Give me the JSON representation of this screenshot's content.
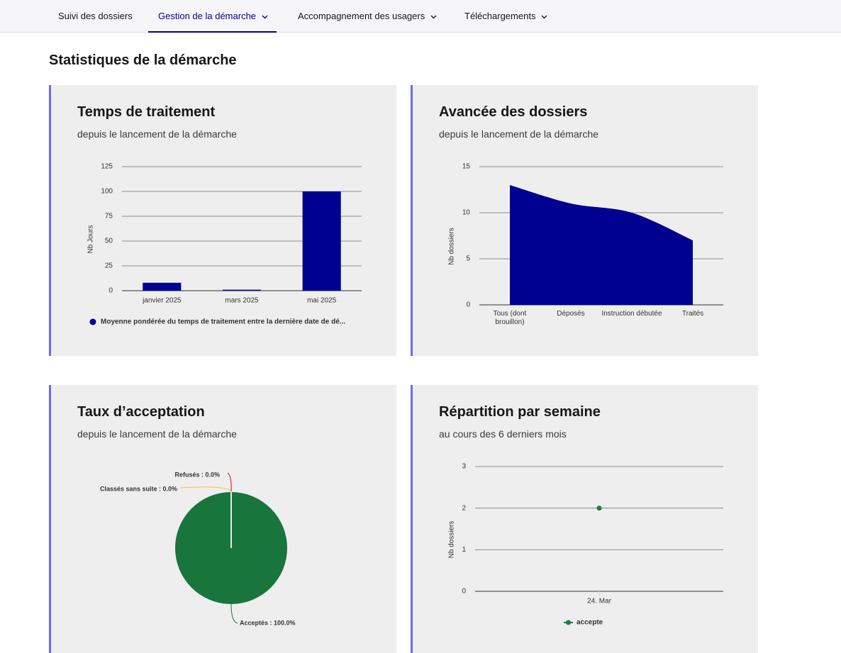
{
  "nav": {
    "items": [
      {
        "label": "Suivi des dossiers",
        "menu": false
      },
      {
        "label": "Gestion de la démarche",
        "menu": true
      },
      {
        "label": "Accompagnement des usagers",
        "menu": true
      },
      {
        "label": "Téléchargements",
        "menu": true
      }
    ],
    "active": 1
  },
  "page_title": "Statistiques de la démarche",
  "chart_data": [
    {
      "type": "bar",
      "title": "Temps de traitement",
      "subtitle": "depuis le lancement de la démarche",
      "ylabel": "Nb Jours",
      "categories": [
        "janvier 2025",
        "mars 2025",
        "mai 2025"
      ],
      "series": [
        {
          "name": "Moyenne pondérée du temps de traitement entre la dernière date de dé...",
          "color": "#000091",
          "values": [
            8,
            1,
            100
          ]
        }
      ],
      "ylim": [
        0,
        125
      ],
      "yticks": [
        0,
        25,
        50,
        75,
        100,
        125
      ],
      "grid": true
    },
    {
      "type": "area",
      "title": "Avancée des dossiers",
      "subtitle": "depuis le lancement de la démarche",
      "ylabel": "Nb dossiers",
      "categories": [
        "Tous (dont brouillon)",
        "Déposés",
        "Instruction débutée",
        "Traités"
      ],
      "series": [
        {
          "color": "#000091",
          "values": [
            13,
            11,
            10,
            7
          ]
        }
      ],
      "ylim": [
        0,
        15
      ],
      "yticks": [
        0,
        5,
        10,
        15
      ],
      "grid": true
    },
    {
      "type": "pie",
      "title": "Taux d’acceptation",
      "subtitle": "depuis le lancement de la démarche",
      "values": [
        100,
        0,
        0
      ],
      "value_labels": [
        "Acceptés : 100.0%",
        "Refusés : 0.0%",
        "Classés sans suite : 0.0%"
      ],
      "colors": [
        "#18753c",
        "#ce0500",
        "#f3c13a"
      ]
    },
    {
      "type": "line",
      "title": "Répartition par semaine",
      "subtitle": "au cours des 6 derniers mois",
      "ylabel": "Nb dossiers",
      "categories": [
        "24. Mar"
      ],
      "series": [
        {
          "name": "accepte",
          "color": "#1f7a45",
          "values": [
            2
          ]
        }
      ],
      "ylim": [
        0,
        3
      ],
      "yticks": [
        0,
        1,
        2,
        3
      ],
      "grid": true
    }
  ]
}
